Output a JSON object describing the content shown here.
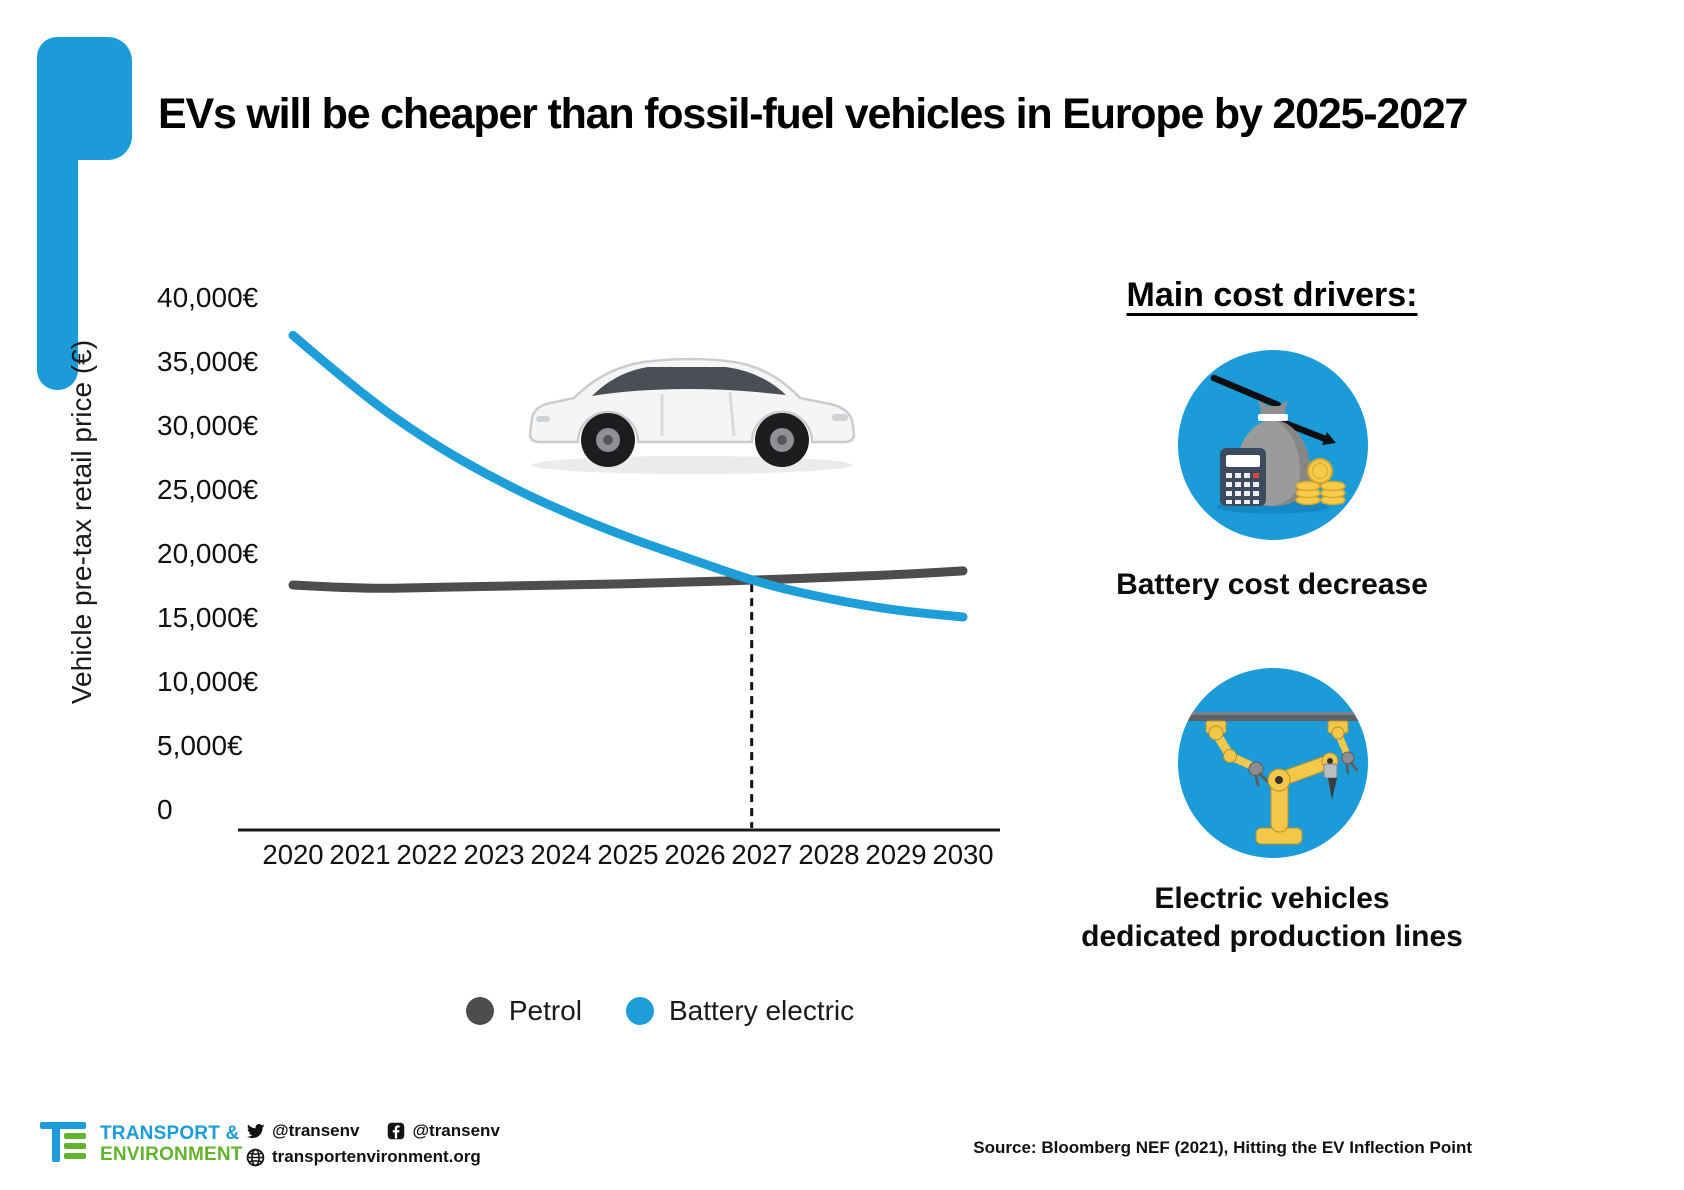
{
  "header": {
    "title": "EVs will be cheaper than fossil-fuel vehicles in Europe by 2025-2027"
  },
  "chart_data": {
    "type": "line",
    "x": [
      2020,
      2021,
      2022,
      2023,
      2024,
      2025,
      2026,
      2027,
      2028,
      2029,
      2030
    ],
    "series": [
      {
        "name": "Petrol",
        "color": "#4d4d4d",
        "values": [
          17500,
          17200,
          17300,
          17400,
          17500,
          17600,
          17750,
          17900,
          18100,
          18300,
          18600
        ]
      },
      {
        "name": "Battery electric",
        "color": "#1e9ed9",
        "values": [
          37000,
          32500,
          28800,
          25800,
          23300,
          21200,
          19400,
          17600,
          16400,
          15500,
          15000
        ]
      }
    ],
    "ylabel": "Vehicle pre-tax retail price (€)",
    "y_ticks": [
      {
        "value": 40000,
        "label": "40,000€"
      },
      {
        "value": 35000,
        "label": "35,000€"
      },
      {
        "value": 30000,
        "label": "30,000€"
      },
      {
        "value": 25000,
        "label": "25,000€"
      },
      {
        "value": 20000,
        "label": "20,000€"
      },
      {
        "value": 15000,
        "label": "15,000€"
      },
      {
        "value": 10000,
        "label": "10,000€"
      },
      {
        "value": 5000,
        "label": "5,000€"
      },
      {
        "value": 0,
        "label": "0"
      }
    ],
    "ylim": [
      0,
      40000
    ],
    "grid": false,
    "legend_position": "bottom",
    "annotations": [
      {
        "type": "dashed-vertical-line",
        "note": "price crossover between 2026 and 2027"
      },
      {
        "type": "image",
        "note": "white hatchback car above the curves"
      }
    ]
  },
  "side_panel": {
    "heading": "Main cost drivers:",
    "items": [
      {
        "icon": "battery-cost-decrease-icon",
        "label": "Battery cost decrease"
      },
      {
        "icon": "production-lines-icon",
        "label_line1": "Electric vehicles",
        "label_line2": "dedicated production lines"
      }
    ]
  },
  "footer": {
    "org_name_line1": "TRANSPORT &",
    "org_name_line2": "ENVIRONMENT",
    "icons": [
      "te-logo-icon",
      "twitter-icon",
      "facebook-icon",
      "globe-icon"
    ],
    "twitter_handle": "@transenv",
    "facebook_handle": "@transenv",
    "website": "transportenvironment.org",
    "source": "Source: Bloomberg NEF (2021), Hitting the EV Inflection Point"
  },
  "colors": {
    "accent_blue": "#1b9cd8",
    "petrol_gray": "#4d4d4d",
    "bev_blue": "#1e9ed9",
    "te_green": "#62b32e"
  }
}
